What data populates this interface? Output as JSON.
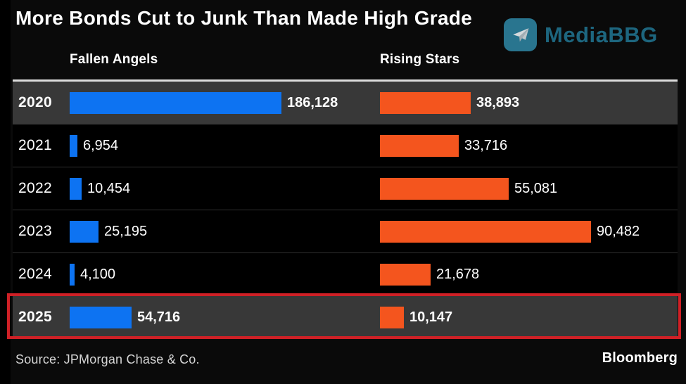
{
  "title": "More Bonds Cut to Junk Than Made High Grade",
  "watermark": {
    "name": "MediaBBG",
    "icon": "telegram-paper-plane-icon",
    "text_color": "#1e6a84",
    "icon_bg": "#2b7a95"
  },
  "columns": {
    "fallen_angels": "Fallen Angels",
    "rising_stars": "Rising Stars"
  },
  "footer": {
    "source": "Source: JPMorgan Chase & Co.",
    "brand": "Bloomberg"
  },
  "colors": {
    "fallen_angels_bar": "#0d73f2",
    "rising_stars_bar": "#f4551e",
    "highlight_border": "#cf2026",
    "emphasis_row_bg": "#383838",
    "background": "#0a0a0a"
  },
  "chart_data": {
    "type": "bar",
    "orientation": "horizontal",
    "title": "More Bonds Cut to Junk Than Made High Grade",
    "categories": [
      "2020",
      "2021",
      "2022",
      "2023",
      "2024",
      "2025"
    ],
    "series": [
      {
        "name": "Fallen Angels",
        "color": "#0d73f2",
        "values": [
          186128,
          6954,
          10454,
          25195,
          4100,
          54716
        ],
        "value_labels": [
          "186,128",
          "6,954",
          "10,454",
          "25,195",
          "4,100",
          "54,716"
        ]
      },
      {
        "name": "Rising Stars",
        "color": "#f4551e",
        "values": [
          38893,
          33716,
          55081,
          90482,
          21678,
          10147
        ],
        "value_labels": [
          "38,893",
          "33,716",
          "55,081",
          "90,482",
          "21,678",
          "10,147"
        ]
      }
    ],
    "emphasis_rows": [
      0,
      5
    ],
    "highlight_row": 5,
    "legend_position": "top",
    "grid": false,
    "notes": "Each column is scaled independently to its own maximum value"
  }
}
